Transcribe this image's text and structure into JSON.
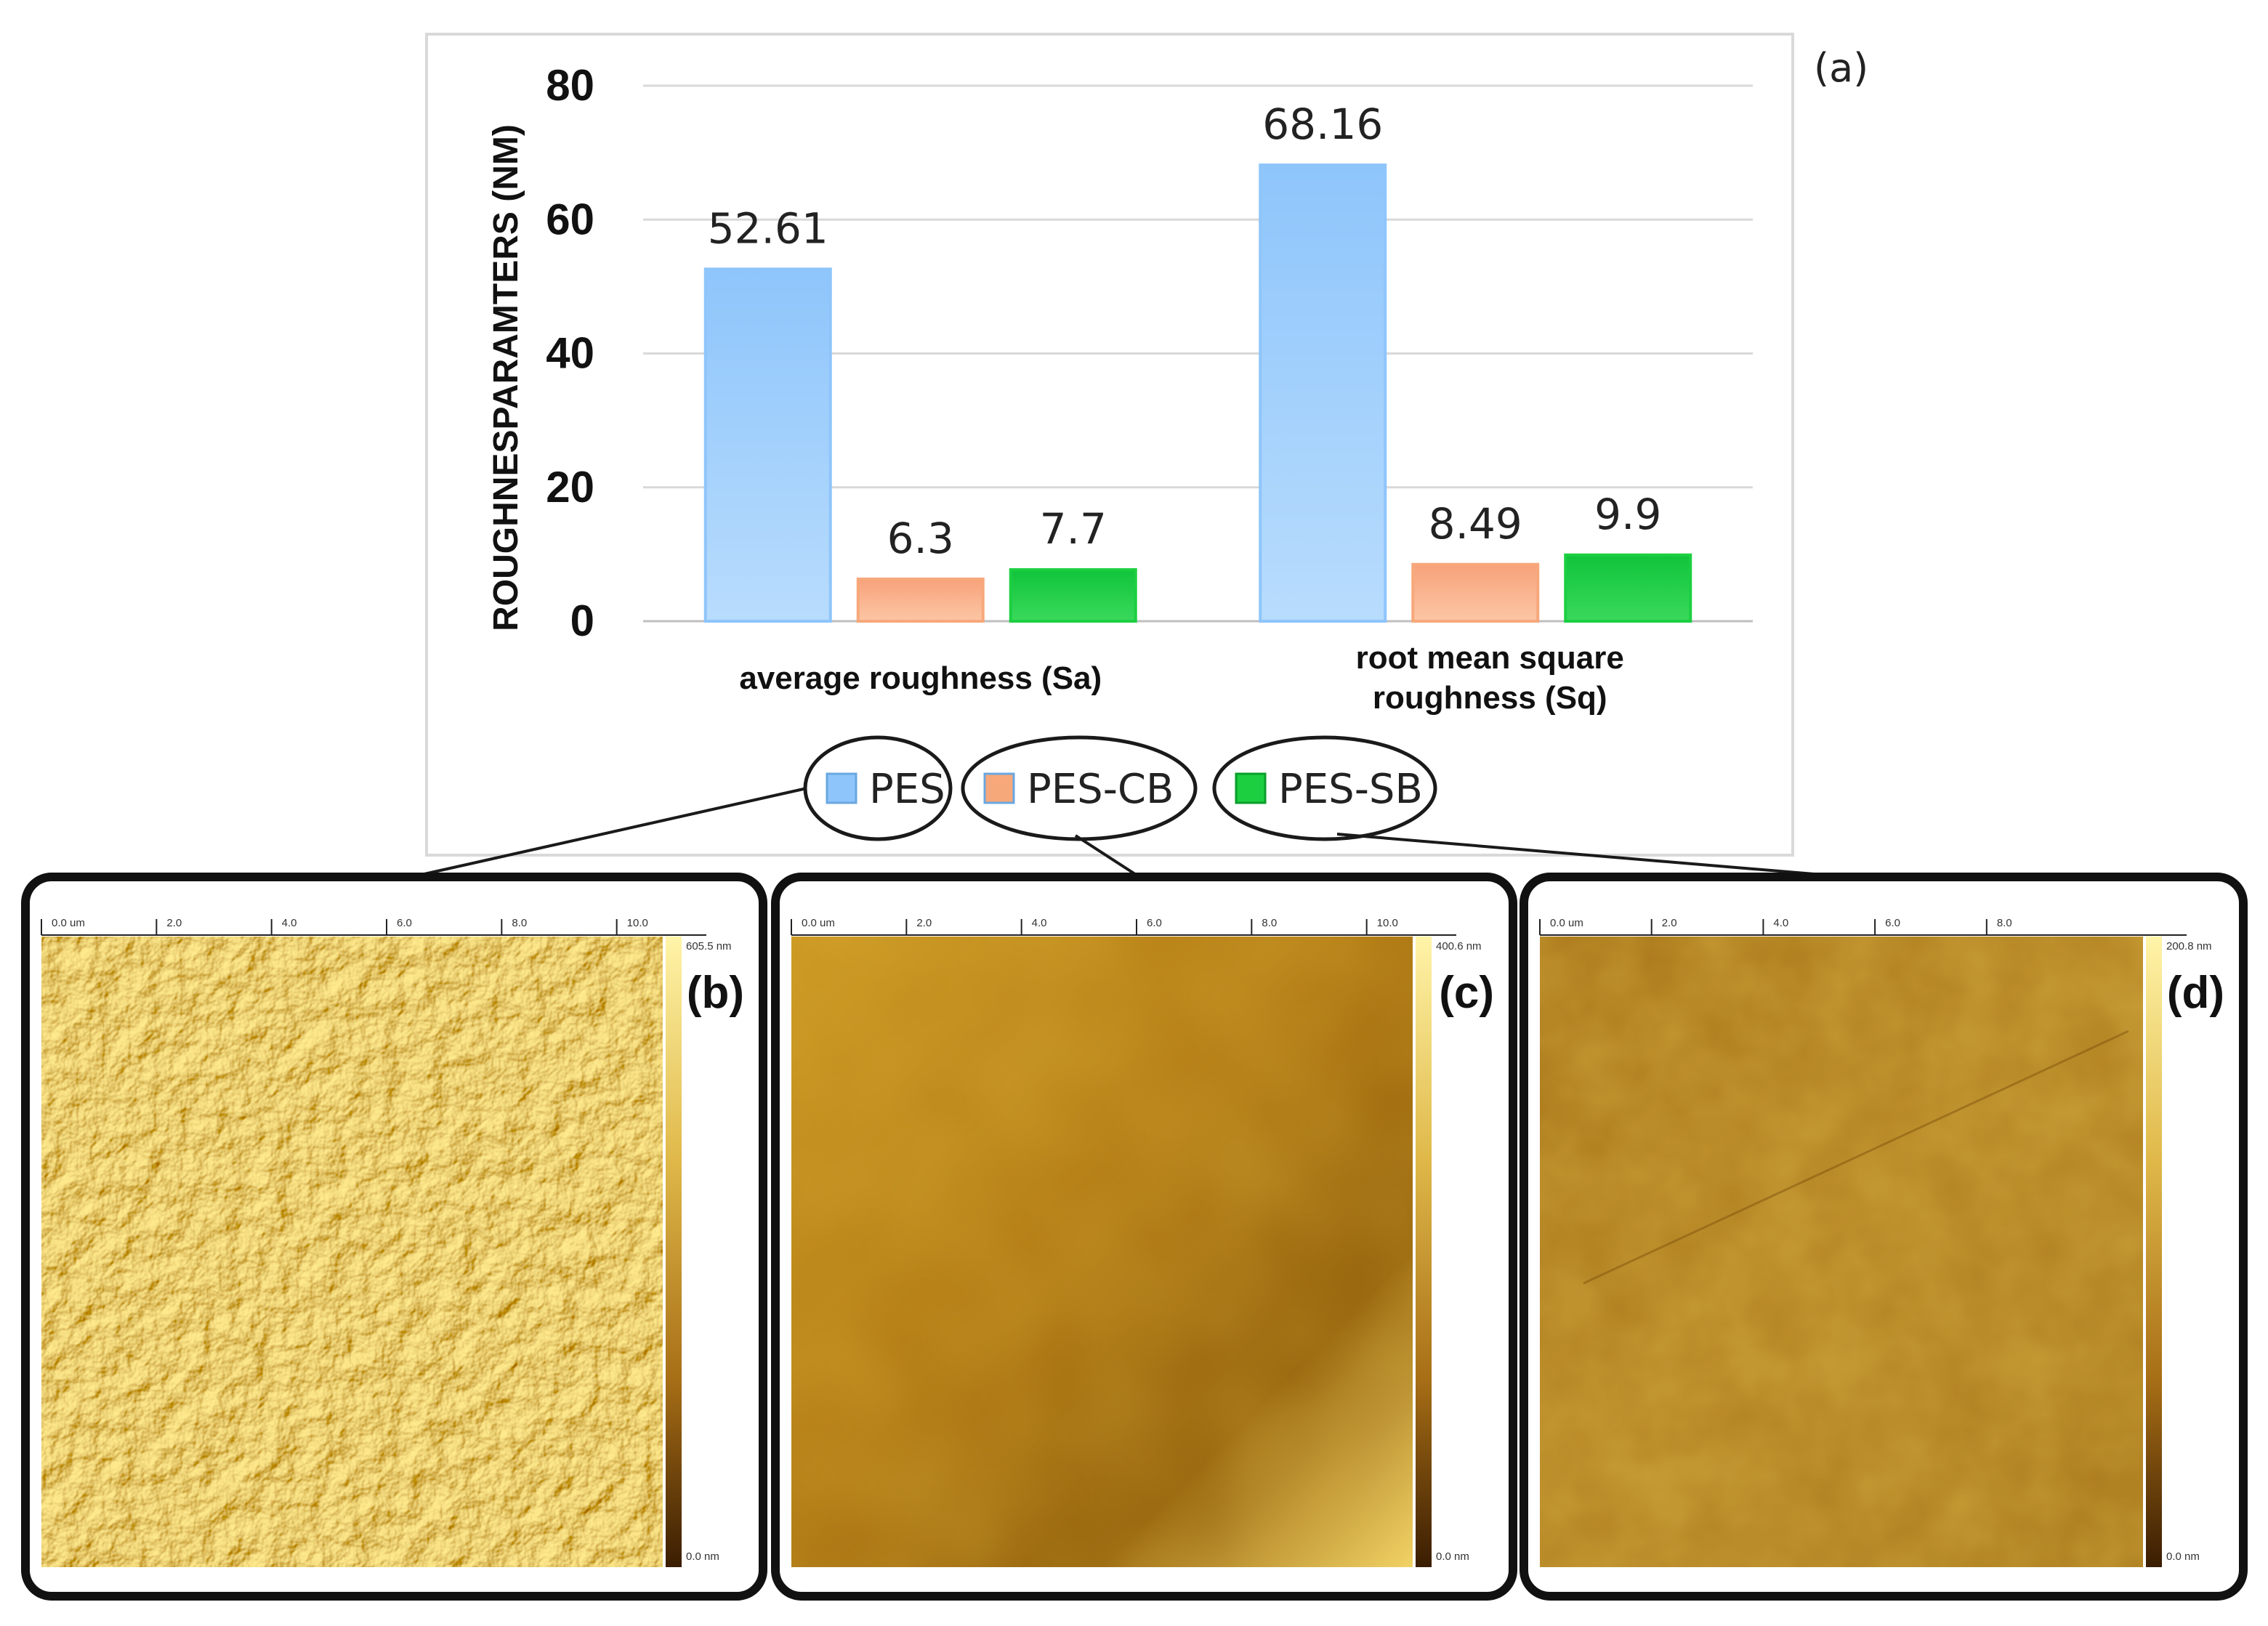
{
  "figure_tag": "(a)",
  "chart_data": {
    "type": "bar",
    "ylabel": "ROUGHNESPARAMTERS (NM)",
    "ylim": [
      0,
      80
    ],
    "yticks": [
      0,
      20,
      40,
      60,
      80
    ],
    "grid": true,
    "legend_position": "bottom",
    "categories": [
      {
        "lines": [
          "average roughness (Sa)"
        ]
      },
      {
        "lines": [
          "root mean square",
          "roughness (Sq)"
        ]
      }
    ],
    "series": [
      {
        "name": "PES",
        "values": [
          52.61,
          68.16
        ],
        "labels": [
          "52.61",
          "68.16"
        ],
        "color": "#8ec5fb"
      },
      {
        "name": "PES-CB",
        "values": [
          6.3,
          8.49
        ],
        "labels": [
          "6.3",
          "8.49"
        ],
        "color": "#f7a87b"
      },
      {
        "name": "PES-SB",
        "values": [
          7.7,
          9.9
        ],
        "labels": [
          "7.7",
          "9.9"
        ],
        "color": "#1ccf41"
      }
    ]
  },
  "afm_panels": [
    {
      "tag": "(b)",
      "axis_ticks": [
        "0.0 um",
        "2.0",
        "4.0",
        "6.0",
        "8.0",
        "10.0"
      ],
      "scale_max": "605.5 nm",
      "scale_min": "0.0 nm",
      "texture": "rough"
    },
    {
      "tag": "(c)",
      "axis_ticks": [
        "0.0 um",
        "2.0",
        "4.0",
        "6.0",
        "8.0",
        "10.0"
      ],
      "scale_max": "400.6 nm",
      "scale_min": "0.0 nm",
      "texture": "smooth"
    },
    {
      "tag": "(d)",
      "axis_ticks": [
        "0.0 um",
        "2.0",
        "4.0",
        "6.0",
        "8.0"
      ],
      "scale_max": "200.8 nm",
      "scale_min": "0.0 nm",
      "texture": "fine"
    }
  ]
}
